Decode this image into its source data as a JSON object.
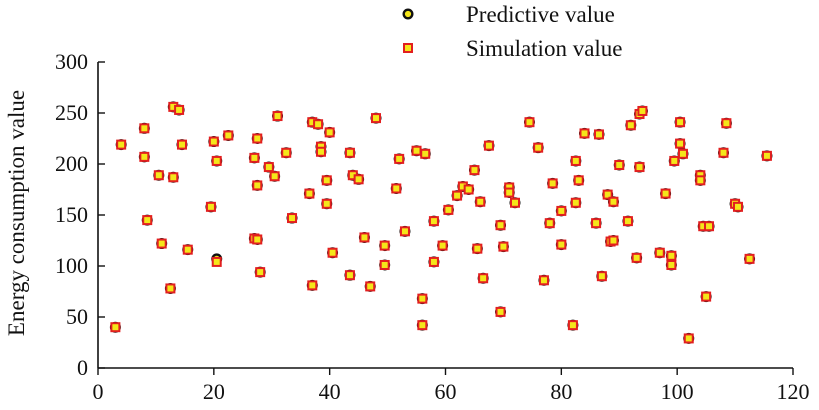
{
  "chart_data": {
    "type": "scatter",
    "title": "",
    "xlabel": "",
    "ylabel": "Energy consumption value",
    "xlim": [
      0,
      120
    ],
    "ylim": [
      0,
      300
    ],
    "x_ticks": [
      0,
      20,
      40,
      60,
      80,
      100,
      120
    ],
    "y_ticks": [
      0,
      50,
      100,
      150,
      200,
      250,
      300
    ],
    "grid": false,
    "legend_position": "top-center",
    "series": [
      {
        "name": "Predictive value",
        "marker": "circle",
        "fill_color": "#f5e61a",
        "edge_color": "#111111",
        "points": [
          [
            3,
            40
          ],
          [
            4,
            219
          ],
          [
            8,
            235
          ],
          [
            8,
            207
          ],
          [
            8.5,
            145
          ],
          [
            10.5,
            189
          ],
          [
            11,
            122
          ],
          [
            12.5,
            78
          ],
          [
            13,
            256
          ],
          [
            13,
            187
          ],
          [
            14,
            253
          ],
          [
            14.5,
            219
          ],
          [
            15.5,
            116
          ],
          [
            19.5,
            158
          ],
          [
            20,
            222
          ],
          [
            20.5,
            203
          ],
          [
            20.5,
            107
          ],
          [
            22.5,
            228
          ],
          [
            27,
            127
          ],
          [
            27,
            206
          ],
          [
            27.5,
            179
          ],
          [
            27.5,
            225
          ],
          [
            27.5,
            126
          ],
          [
            28,
            94
          ],
          [
            29.5,
            197
          ],
          [
            30.5,
            188
          ],
          [
            31,
            247
          ],
          [
            32.5,
            211
          ],
          [
            33.5,
            147
          ],
          [
            36.5,
            171
          ],
          [
            37,
            81
          ],
          [
            37,
            241
          ],
          [
            38,
            239
          ],
          [
            38.5,
            217
          ],
          [
            38.5,
            212
          ],
          [
            39.5,
            184
          ],
          [
            39.5,
            161
          ],
          [
            40,
            231
          ],
          [
            40.5,
            113
          ],
          [
            43.5,
            211
          ],
          [
            43.5,
            91
          ],
          [
            44,
            189
          ],
          [
            45,
            185
          ],
          [
            46,
            128
          ],
          [
            47,
            80
          ],
          [
            48,
            245
          ],
          [
            49.5,
            120
          ],
          [
            49.5,
            101
          ],
          [
            51.5,
            176
          ],
          [
            52,
            205
          ],
          [
            53,
            134
          ],
          [
            55,
            213
          ],
          [
            56,
            68
          ],
          [
            56.5,
            210
          ],
          [
            56,
            42
          ],
          [
            58,
            104
          ],
          [
            58,
            144
          ],
          [
            59.5,
            120
          ],
          [
            60.5,
            155
          ],
          [
            62,
            169
          ],
          [
            63,
            178
          ],
          [
            64,
            175
          ],
          [
            65,
            194
          ],
          [
            65.5,
            117
          ],
          [
            66,
            163
          ],
          [
            66.5,
            88
          ],
          [
            67.5,
            218
          ],
          [
            69.5,
            140
          ],
          [
            69.5,
            55
          ],
          [
            70,
            119
          ],
          [
            71,
            177
          ],
          [
            71,
            172
          ],
          [
            72,
            162
          ],
          [
            74.5,
            241
          ],
          [
            76,
            216
          ],
          [
            77,
            86
          ],
          [
            78,
            142
          ],
          [
            78.5,
            181
          ],
          [
            80,
            154
          ],
          [
            80,
            121
          ],
          [
            82,
            42
          ],
          [
            82.5,
            162
          ],
          [
            82.5,
            203
          ],
          [
            83,
            184
          ],
          [
            84,
            230
          ],
          [
            86,
            142
          ],
          [
            86.5,
            229
          ],
          [
            87,
            90
          ],
          [
            88,
            170
          ],
          [
            88.5,
            124
          ],
          [
            89,
            125
          ],
          [
            89,
            163
          ],
          [
            90,
            199
          ],
          [
            91.5,
            144
          ],
          [
            92,
            238
          ],
          [
            93,
            108
          ],
          [
            93.5,
            197
          ],
          [
            93.5,
            249
          ],
          [
            94,
            252
          ],
          [
            97,
            113
          ],
          [
            98,
            171
          ],
          [
            99,
            110
          ],
          [
            99,
            101
          ],
          [
            99.5,
            203
          ],
          [
            100.5,
            241
          ],
          [
            100.5,
            220
          ],
          [
            101,
            210
          ],
          [
            102,
            29
          ],
          [
            104,
            189
          ],
          [
            104,
            184
          ],
          [
            104.5,
            139
          ],
          [
            105,
            70
          ],
          [
            105.5,
            139
          ],
          [
            108,
            211
          ],
          [
            108.5,
            240
          ],
          [
            110,
            161
          ],
          [
            110.5,
            158
          ],
          [
            112.5,
            107
          ],
          [
            115.5,
            208
          ]
        ]
      },
      {
        "name": "Simulation value",
        "marker": "square",
        "fill_color": "#f5e61a",
        "edge_color": "#e21f1f",
        "points": [
          [
            3,
            40
          ],
          [
            4,
            219
          ],
          [
            8,
            235
          ],
          [
            8,
            207
          ],
          [
            8.5,
            145
          ],
          [
            10.5,
            189
          ],
          [
            11,
            122
          ],
          [
            12.5,
            78
          ],
          [
            13,
            256
          ],
          [
            13,
            187
          ],
          [
            14,
            253
          ],
          [
            14.5,
            219
          ],
          [
            15.5,
            116
          ],
          [
            19.5,
            158
          ],
          [
            20,
            222
          ],
          [
            20.5,
            203
          ],
          [
            20.5,
            104
          ],
          [
            22.5,
            228
          ],
          [
            27,
            127
          ],
          [
            27,
            206
          ],
          [
            27.5,
            179
          ],
          [
            27.5,
            225
          ],
          [
            27.5,
            126
          ],
          [
            28,
            94
          ],
          [
            29.5,
            197
          ],
          [
            30.5,
            188
          ],
          [
            31,
            247
          ],
          [
            32.5,
            211
          ],
          [
            33.5,
            147
          ],
          [
            36.5,
            171
          ],
          [
            37,
            81
          ],
          [
            37,
            241
          ],
          [
            38,
            239
          ],
          [
            38.5,
            217
          ],
          [
            38.5,
            212
          ],
          [
            39.5,
            184
          ],
          [
            39.5,
            161
          ],
          [
            40,
            231
          ],
          [
            40.5,
            113
          ],
          [
            43.5,
            211
          ],
          [
            43.5,
            91
          ],
          [
            44,
            189
          ],
          [
            45,
            185
          ],
          [
            46,
            128
          ],
          [
            47,
            80
          ],
          [
            48,
            245
          ],
          [
            49.5,
            120
          ],
          [
            49.5,
            101
          ],
          [
            51.5,
            176
          ],
          [
            52,
            205
          ],
          [
            53,
            134
          ],
          [
            55,
            213
          ],
          [
            56,
            68
          ],
          [
            56.5,
            210
          ],
          [
            56,
            42
          ],
          [
            58,
            104
          ],
          [
            58,
            144
          ],
          [
            59.5,
            120
          ],
          [
            60.5,
            155
          ],
          [
            62,
            169
          ],
          [
            63,
            178
          ],
          [
            64,
            175
          ],
          [
            65,
            194
          ],
          [
            65.5,
            117
          ],
          [
            66,
            163
          ],
          [
            66.5,
            88
          ],
          [
            67.5,
            218
          ],
          [
            69.5,
            140
          ],
          [
            69.5,
            55
          ],
          [
            70,
            119
          ],
          [
            71,
            177
          ],
          [
            71,
            172
          ],
          [
            72,
            162
          ],
          [
            74.5,
            241
          ],
          [
            76,
            216
          ],
          [
            77,
            86
          ],
          [
            78,
            142
          ],
          [
            78.5,
            181
          ],
          [
            80,
            154
          ],
          [
            80,
            121
          ],
          [
            82,
            42
          ],
          [
            82.5,
            162
          ],
          [
            82.5,
            203
          ],
          [
            83,
            184
          ],
          [
            84,
            230
          ],
          [
            86,
            142
          ],
          [
            86.5,
            229
          ],
          [
            87,
            90
          ],
          [
            88,
            170
          ],
          [
            88.5,
            124
          ],
          [
            89,
            125
          ],
          [
            89,
            163
          ],
          [
            90,
            199
          ],
          [
            91.5,
            144
          ],
          [
            92,
            238
          ],
          [
            93,
            108
          ],
          [
            93.5,
            197
          ],
          [
            93.5,
            249
          ],
          [
            94,
            252
          ],
          [
            97,
            113
          ],
          [
            98,
            171
          ],
          [
            99,
            110
          ],
          [
            99,
            101
          ],
          [
            99.5,
            203
          ],
          [
            100.5,
            241
          ],
          [
            100.5,
            220
          ],
          [
            101,
            210
          ],
          [
            102,
            29
          ],
          [
            104,
            189
          ],
          [
            104,
            184
          ],
          [
            104.5,
            139
          ],
          [
            105,
            70
          ],
          [
            105.5,
            139
          ],
          [
            108,
            211
          ],
          [
            108.5,
            240
          ],
          [
            110,
            161
          ],
          [
            110.5,
            158
          ],
          [
            112.5,
            107
          ],
          [
            115.5,
            208
          ]
        ]
      }
    ]
  }
}
